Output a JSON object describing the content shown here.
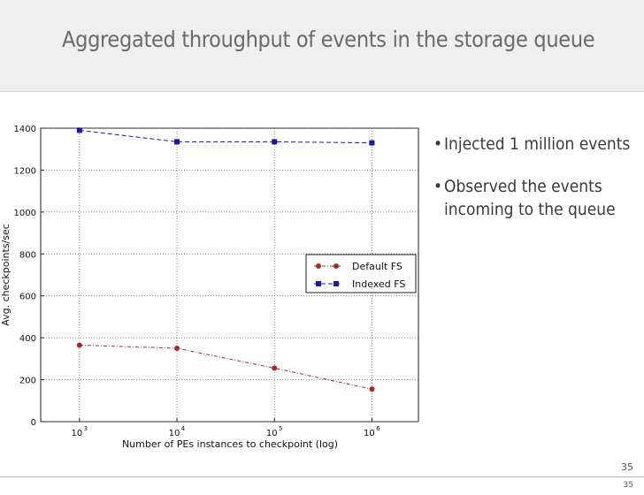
{
  "slide": {
    "title": "Aggregated throughput of events in the storage queue",
    "bullets": [
      "Injected 1 million events",
      "Observed the events incoming to the queue"
    ],
    "page_number": "35",
    "page_number_small": "35"
  },
  "chart_data": {
    "type": "line",
    "title": "",
    "xlabel": "Number of PEs instances to checkpoint (log)",
    "ylabel": "Avg. checkpoints/sec",
    "x_scale": "log",
    "x": [
      1000,
      10000,
      100000,
      1000000
    ],
    "x_tick_labels": [
      {
        "base": "10",
        "exp": "3"
      },
      {
        "base": "10",
        "exp": "4"
      },
      {
        "base": "10",
        "exp": "5"
      },
      {
        "base": "10",
        "exp": "6"
      }
    ],
    "xlim": [
      400,
      3000000
    ],
    "ylim": [
      0,
      1400
    ],
    "y_ticks": [
      0,
      200,
      400,
      600,
      800,
      1000,
      1200,
      1400
    ],
    "grid": true,
    "legend_position": "center-right",
    "series": [
      {
        "name": "Default FS",
        "values": [
          365,
          350,
          255,
          155
        ],
        "color": "#a52a2a",
        "marker": "circle",
        "linestyle": "dash-dot"
      },
      {
        "name": "Indexed FS",
        "values": [
          1390,
          1335,
          1335,
          1330
        ],
        "color": "#1a1aa0",
        "marker": "square",
        "linestyle": "dashed"
      }
    ]
  }
}
